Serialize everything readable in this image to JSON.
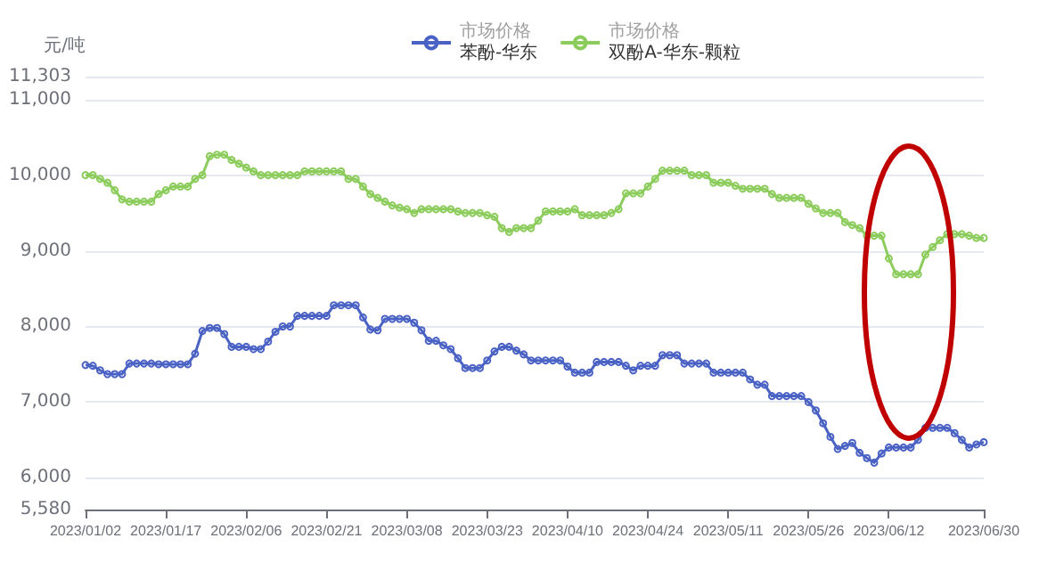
{
  "chart_data": {
    "type": "line",
    "ylabel": "元/吨",
    "categories": [
      "2023/01/02",
      null,
      null,
      null,
      null,
      null,
      null,
      null,
      null,
      null,
      null,
      "2023/01/17",
      null,
      null,
      null,
      null,
      null,
      null,
      null,
      null,
      null,
      null,
      "2023/02/06",
      null,
      null,
      null,
      null,
      null,
      null,
      null,
      null,
      null,
      null,
      "2023/02/21",
      null,
      null,
      null,
      null,
      null,
      null,
      null,
      null,
      null,
      null,
      "2023/03/08",
      null,
      null,
      null,
      null,
      null,
      null,
      null,
      null,
      null,
      null,
      "2023/03/23",
      null,
      null,
      null,
      null,
      null,
      null,
      null,
      null,
      null,
      null,
      "2023/04/10",
      null,
      null,
      null,
      null,
      null,
      null,
      null,
      null,
      null,
      null,
      "2023/04/24",
      null,
      null,
      null,
      null,
      null,
      null,
      null,
      null,
      null,
      null,
      "2023/05/11",
      null,
      null,
      null,
      null,
      null,
      null,
      null,
      null,
      null,
      null,
      "2023/05/26",
      null,
      null,
      null,
      null,
      null,
      null,
      null,
      null,
      null,
      null,
      "2023/06/12",
      null,
      null,
      null,
      null,
      null,
      null,
      null,
      null,
      null,
      null,
      null,
      null,
      "2023/06/30"
    ],
    "series": [
      {
        "name": "市场价格苯酚-华东",
        "color": "#4a62c4",
        "values": [
          7490,
          7480,
          7420,
          7370,
          7370,
          7370,
          7510,
          7510,
          7510,
          7510,
          7500,
          7500,
          7500,
          7500,
          7500,
          7640,
          7940,
          7980,
          7980,
          7900,
          7730,
          7730,
          7730,
          7700,
          7700,
          7800,
          7930,
          8000,
          8000,
          8140,
          8140,
          8140,
          8140,
          8140,
          8280,
          8280,
          8280,
          8280,
          8120,
          7960,
          7950,
          8100,
          8100,
          8100,
          8100,
          8050,
          7950,
          7810,
          7810,
          7750,
          7700,
          7580,
          7450,
          7450,
          7450,
          7550,
          7670,
          7730,
          7730,
          7680,
          7630,
          7550,
          7550,
          7550,
          7550,
          7550,
          7470,
          7390,
          7390,
          7390,
          7530,
          7530,
          7530,
          7530,
          7480,
          7420,
          7480,
          7480,
          7480,
          7620,
          7620,
          7620,
          7510,
          7510,
          7510,
          7510,
          7390,
          7390,
          7390,
          7390,
          7390,
          7300,
          7230,
          7230,
          7080,
          7080,
          7080,
          7080,
          7080,
          7000,
          6890,
          6720,
          6540,
          6380,
          6420,
          6460,
          6330,
          6260,
          6200,
          6320,
          6400,
          6400,
          6400,
          6400,
          6500,
          6660,
          6660,
          6660,
          6660,
          6590,
          6500,
          6400,
          6440,
          6470
        ]
      },
      {
        "name": "市场价格双酚A-华东-颗粒",
        "color": "#8ccc5c",
        "values": [
          10000,
          10000,
          9950,
          9900,
          9800,
          9680,
          9650,
          9650,
          9650,
          9650,
          9750,
          9800,
          9850,
          9850,
          9850,
          9950,
          10000,
          10250,
          10270,
          10270,
          10200,
          10150,
          10100,
          10050,
          10000,
          10000,
          10000,
          10000,
          10000,
          10000,
          10050,
          10050,
          10050,
          10050,
          10050,
          10050,
          9950,
          9950,
          9850,
          9750,
          9700,
          9650,
          9600,
          9570,
          9550,
          9500,
          9550,
          9550,
          9550,
          9550,
          9550,
          9520,
          9500,
          9500,
          9500,
          9470,
          9450,
          9300,
          9250,
          9300,
          9300,
          9300,
          9400,
          9520,
          9520,
          9520,
          9520,
          9550,
          9470,
          9470,
          9470,
          9470,
          9500,
          9550,
          9760,
          9760,
          9760,
          9850,
          9950,
          10060,
          10060,
          10060,
          10060,
          10000,
          10000,
          10000,
          9900,
          9900,
          9900,
          9860,
          9820,
          9820,
          9820,
          9820,
          9750,
          9700,
          9700,
          9700,
          9700,
          9620,
          9560,
          9500,
          9500,
          9500,
          9380,
          9340,
          9300,
          9200,
          9200,
          9200,
          8900,
          8690,
          8690,
          8690,
          8690,
          8950,
          9050,
          9140,
          9220,
          9220,
          9220,
          9200,
          9170,
          9170
        ]
      }
    ],
    "ylim": [
      5580,
      11303
    ],
    "yticks": [
      {
        "value": 5580,
        "label": "5,580"
      },
      {
        "value": 6000,
        "label": "6,000"
      },
      {
        "value": 7000,
        "label": "7,000"
      },
      {
        "value": 8000,
        "label": "8,000"
      },
      {
        "value": 9000,
        "label": "9,000"
      },
      {
        "value": 10000,
        "label": "10,000"
      },
      {
        "value": 11000,
        "label": "11,000"
      },
      {
        "value": 11303,
        "label": "11,303"
      }
    ],
    "grid": "y",
    "legend": "top",
    "marker": "circle",
    "line_style": "solid"
  }
}
